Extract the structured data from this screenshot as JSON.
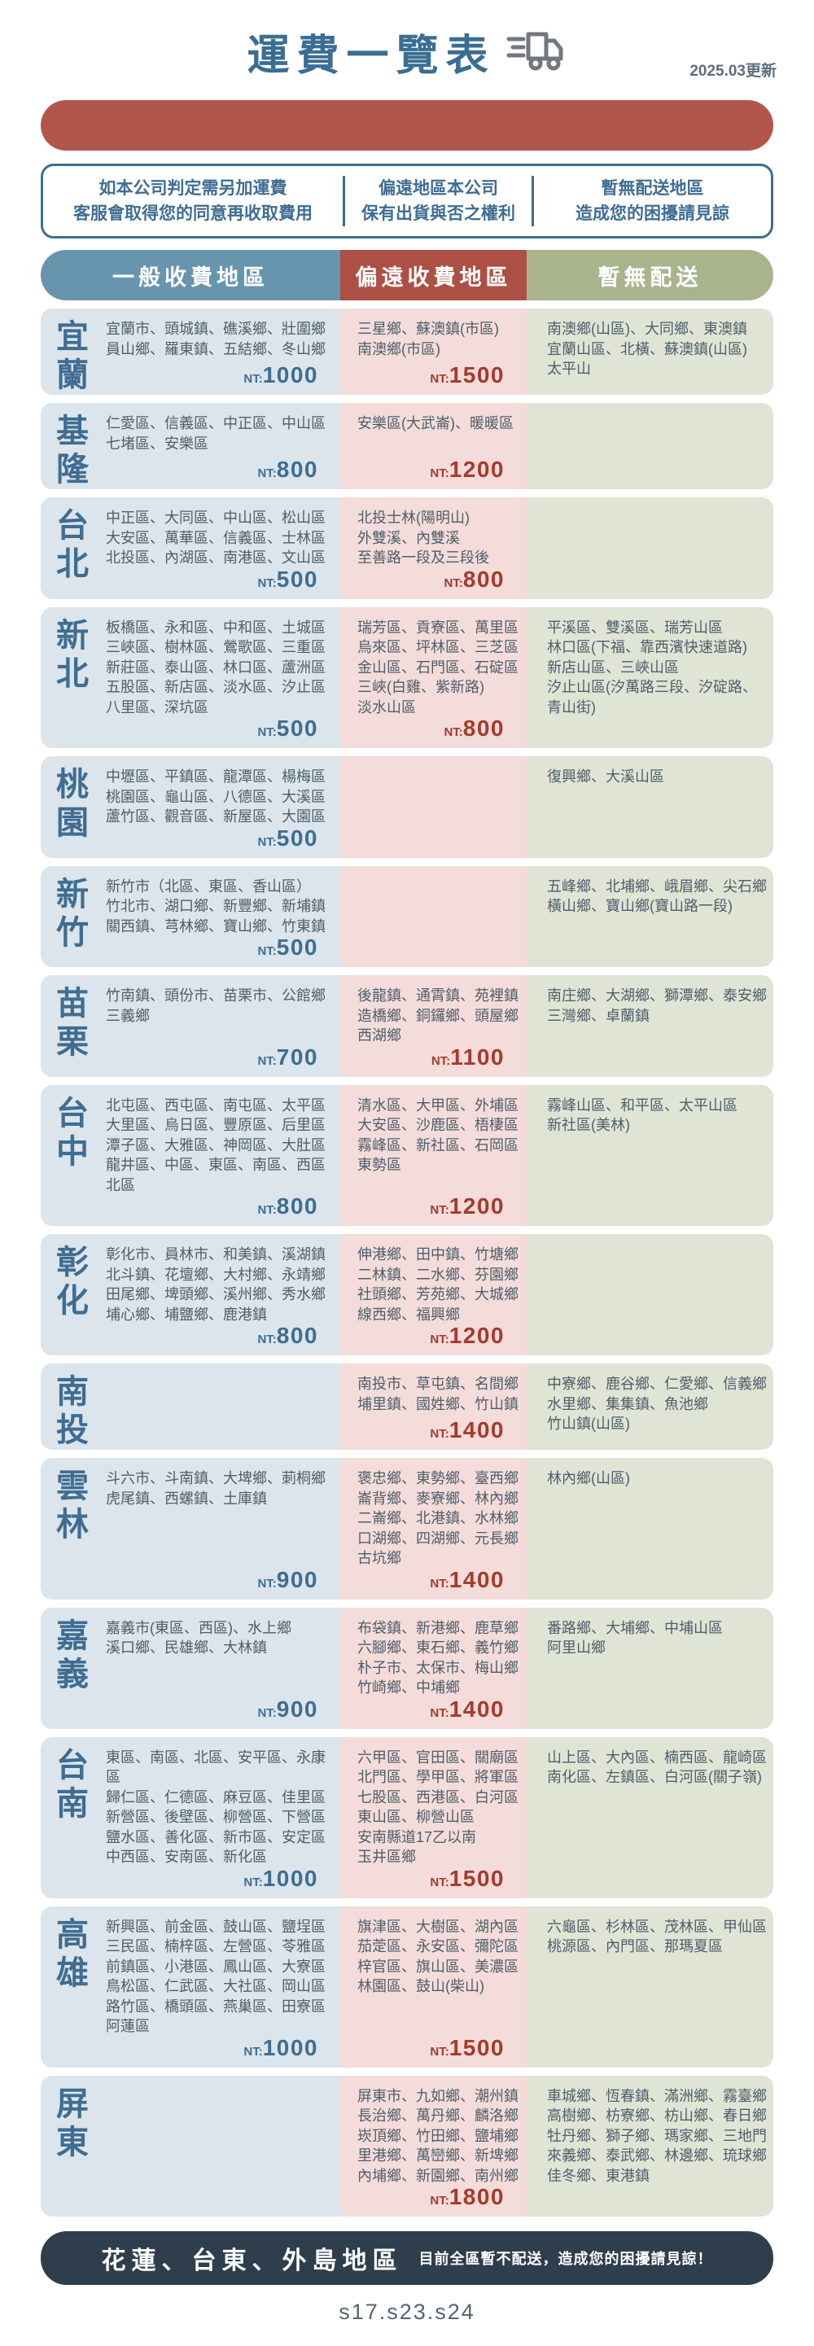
{
  "header": {
    "title": "運費一覽表",
    "updated": "2025.03更新"
  },
  "notes": [
    {
      "line1": "如本公司判定需另加運費",
      "line2": "客服會取得您的同意再收取費用"
    },
    {
      "line1": "偏遠地區本公司",
      "line2": "保有出貨與否之權利"
    },
    {
      "line1": "暫無配送地區",
      "line2": "造成您的困擾請見諒"
    }
  ],
  "columns": {
    "general": "一般收費地區",
    "remote": "偏遠收費地區",
    "none": "暫無配送"
  },
  "nt_prefix": "NT:",
  "colors": {
    "accent_blue": "#3f6d92",
    "bar_red": "#b2564b",
    "header_blue": "#6895ae",
    "header_red": "#ad5044",
    "header_green": "#a9b48d",
    "cell_blue_bg": "#dbe5eb",
    "cell_pink_bg": "#f3dcda",
    "cell_green_bg": "#dfe4d5",
    "price_red": "#a63a2c",
    "footer_navy": "#2e3e4d"
  },
  "rows": [
    {
      "region": "宜蘭",
      "general_lines": [
        "宜蘭市、頭城鎮、礁溪鄉、壯圍鄉",
        "員山鄉、羅東鎮、五結鄉、冬山鄉"
      ],
      "general_price": "1000",
      "remote_lines": [
        "三星鄉、蘇澳鎮(市區)",
        "南澳鄉(市區)"
      ],
      "remote_price": "1500",
      "none_lines": [
        "南澳鄉(山區)、大同鄉、東澳鎮",
        "宜蘭山區、北橫、蘇澳鎮(山區)",
        "太平山"
      ]
    },
    {
      "region": "基隆",
      "general_lines": [
        "仁愛區、信義區、中正區、中山區",
        "七堵區、安樂區"
      ],
      "general_price": "800",
      "remote_lines": [
        "安樂區(大武崙)、暖暖區"
      ],
      "remote_price": "1200",
      "none_lines": []
    },
    {
      "region": "台北",
      "general_lines": [
        "中正區、大同區、中山區、松山區",
        "大安區、萬華區、信義區、士林區",
        "北投區、內湖區、南港區、文山區"
      ],
      "general_price": "500",
      "remote_lines": [
        "北投士林(陽明山)",
        "外雙溪、內雙溪",
        "至善路一段及三段後"
      ],
      "remote_price": "800",
      "none_lines": []
    },
    {
      "region": "新北",
      "general_lines": [
        "板橋區、永和區、中和區、土城區",
        "三峽區、樹林區、鶯歌區、三重區",
        "新莊區、泰山區、林口區、蘆洲區",
        "五股區、新店區、淡水區、汐止區",
        "八里區、深坑區"
      ],
      "general_price": "500",
      "remote_lines": [
        "瑞芳區、貢寮區、萬里區",
        "烏來區、坪林區、三芝區",
        "金山區、石門區、石碇區",
        "三峽(白雞、紫新路)",
        "淡水山區"
      ],
      "remote_price": "800",
      "none_lines": [
        "平溪區、雙溪區、瑞芳山區",
        "林口區(下福、靠西濱快速道路)",
        "新店山區、三峽山區",
        "汐止山區(汐萬路三段、汐碇路、",
        "青山街)"
      ]
    },
    {
      "region": "桃園",
      "general_lines": [
        "中壢區、平鎮區、龍潭區、楊梅區",
        "桃園區、龜山區、八德區、大溪區",
        "蘆竹區、觀音區、新屋區、大園區"
      ],
      "general_price": "500",
      "remote_lines": [],
      "remote_price": null,
      "none_lines": [
        "復興鄉、大溪山區"
      ]
    },
    {
      "region": "新竹",
      "general_lines": [
        "新竹市（北區、東區、香山區）",
        "竹北市、湖口鄉、新豐鄉、新埔鎮",
        "關西鎮、芎林鄉、寶山鄉、竹東鎮"
      ],
      "general_price": "500",
      "remote_lines": [],
      "remote_price": null,
      "none_lines": [
        "五峰鄉、北埔鄉、峨眉鄉、尖石鄉",
        "橫山鄉、寶山鄉(寶山路一段)"
      ]
    },
    {
      "region": "苗栗",
      "general_lines": [
        "竹南鎮、頭份市、苗栗市、公館鄉",
        "三義鄉"
      ],
      "general_price": "700",
      "remote_lines": [
        "後龍鎮、通霄鎮、苑裡鎮",
        "造橋鄉、銅鑼鄉、頭屋鄉",
        "西湖鄉"
      ],
      "remote_price": "1100",
      "none_lines": [
        "南庄鄉、大湖鄉、獅潭鄉、泰安鄉",
        "三灣鄉、卓蘭鎮"
      ]
    },
    {
      "region": "台中",
      "general_lines": [
        "北屯區、西屯區、南屯區、太平區",
        "大里區、烏日區、豐原區、后里區",
        "潭子區、大雅區、神岡區、大肚區",
        "龍井區、中區、東區、南區、西區",
        "北區"
      ],
      "general_price": "800",
      "remote_lines": [
        "清水區、大甲區、外埔區",
        "大安區、沙鹿區、梧棲區",
        "霧峰區、新社區、石岡區",
        "東勢區"
      ],
      "remote_price": "1200",
      "none_lines": [
        "霧峰山區、和平區、太平山區",
        "新社區(美林)"
      ]
    },
    {
      "region": "彰化",
      "general_lines": [
        "彰化市、員林市、和美鎮、溪湖鎮",
        "北斗鎮、花壇鄉、大村鄉、永靖鄉",
        "田尾鄉、埤頭鄉、溪州鄉、秀水鄉",
        "埔心鄉、埔鹽鄉、鹿港鎮"
      ],
      "general_price": "800",
      "remote_lines": [
        "伸港鄉、田中鎮、竹塘鄉",
        "二林鎮、二水鄉、芬園鄉",
        "社頭鄉、芳苑鄉、大城鄉",
        "線西鄉、福興鄉"
      ],
      "remote_price": "1200",
      "none_lines": []
    },
    {
      "region": "南投",
      "general_lines": [],
      "general_price": null,
      "remote_lines": [
        "南投市、草屯鎮、名間鄉",
        "埔里鎮、國姓鄉、竹山鎮"
      ],
      "remote_price": "1400",
      "none_lines": [
        "中寮鄉、鹿谷鄉、仁愛鄉、信義鄉",
        "水里鄉、集集鎮、魚池鄉",
        "竹山鎮(山區)"
      ]
    },
    {
      "region": "雲林",
      "general_lines": [
        "斗六市、斗南鎮、大埤鄉、莿桐鄉",
        "虎尾鎮、西螺鎮、土庫鎮"
      ],
      "general_price": "900",
      "remote_lines": [
        "褒忠鄉、東勢鄉、臺西鄉",
        "崙背鄉、麥寮鄉、林內鄉",
        "二崙鄉、北港鎮、水林鄉",
        "口湖鄉、四湖鄉、元長鄉",
        "古坑鄉"
      ],
      "remote_price": "1400",
      "none_lines": [
        "林內鄉(山區)"
      ]
    },
    {
      "region": "嘉義",
      "general_lines": [
        "嘉義市(東區、西區)、水上鄉",
        "溪口鄉、民雄鄉、大林鎮"
      ],
      "general_price": "900",
      "remote_lines": [
        "布袋鎮、新港鄉、鹿草鄉",
        "六腳鄉、東石鄉、義竹鄉",
        "朴子市、太保市、梅山鄉",
        "竹崎鄉、中埔鄉"
      ],
      "remote_price": "1400",
      "none_lines": [
        "番路鄉、大埔鄉、中埔山區",
        "阿里山鄉"
      ]
    },
    {
      "region": "台南",
      "general_lines": [
        "東區、南區、北區、安平區、永康區",
        "歸仁區、仁德區、麻豆區、佳里區",
        "新營區、後壁區、柳營區、下營區",
        "鹽水區、善化區、新市區、安定區",
        "中西區、安南區、新化區"
      ],
      "general_price": "1000",
      "remote_lines": [
        "六甲區、官田區、關廟區",
        "北門區、學甲區、將軍區",
        "七股區、西港區、白河區",
        "東山區、柳營山區",
        "安南縣道17乙以南",
        "玉井區鄉"
      ],
      "remote_price": "1500",
      "none_lines": [
        "山上區、大內區、楠西區、龍崎區",
        "南化區、左鎮區、白河區(關子嶺)"
      ]
    },
    {
      "region": "高雄",
      "general_lines": [
        "新興區、前金區、鼓山區、鹽埕區",
        "三民區、楠梓區、左營區、苓雅區",
        "前鎮區、小港區、鳳山區、大寮區",
        "鳥松區、仁武區、大社區、岡山區",
        "路竹區、橋頭區、燕巢區、田寮區",
        "阿蓮區"
      ],
      "general_price": "1000",
      "remote_lines": [
        "旗津區、大樹區、湖內區",
        "茄萣區、永安區、彌陀區",
        "梓官區、旗山區、美濃區",
        "林園區、鼓山(柴山)"
      ],
      "remote_price": "1500",
      "none_lines": [
        "六龜區、杉林區、茂林區、甲仙區",
        "桃源區、內門區、那瑪夏區"
      ]
    },
    {
      "region": "屏東",
      "general_lines": [],
      "general_price": null,
      "remote_lines": [
        "屏東市、九如鄉、潮州鎮",
        "長治鄉、萬丹鄉、麟洛鄉",
        "崁頂鄉、竹田鄉、鹽埔鄉",
        "里港鄉、萬巒鄉、新埤鄉",
        "內埔鄉、新園鄉、南州鄉"
      ],
      "remote_price": "1800",
      "none_lines": [
        "車城鄉、恆春鎮、滿洲鄉、霧臺鄉",
        "高樹鄉、枋寮鄉、枋山鄉、春日鄉",
        "牡丹鄉、獅子鄉、瑪家鄉、三地門",
        "來義鄉、泰武鄉、林邊鄉、琉球鄉",
        "佳冬鄉、東港鎮"
      ]
    }
  ],
  "footer": {
    "title": "花蓮、台東、外島地區",
    "subtitle": "目前全區暫不配送，造成您的困擾請見諒！"
  },
  "bottom_code": "s17.s23.s24"
}
